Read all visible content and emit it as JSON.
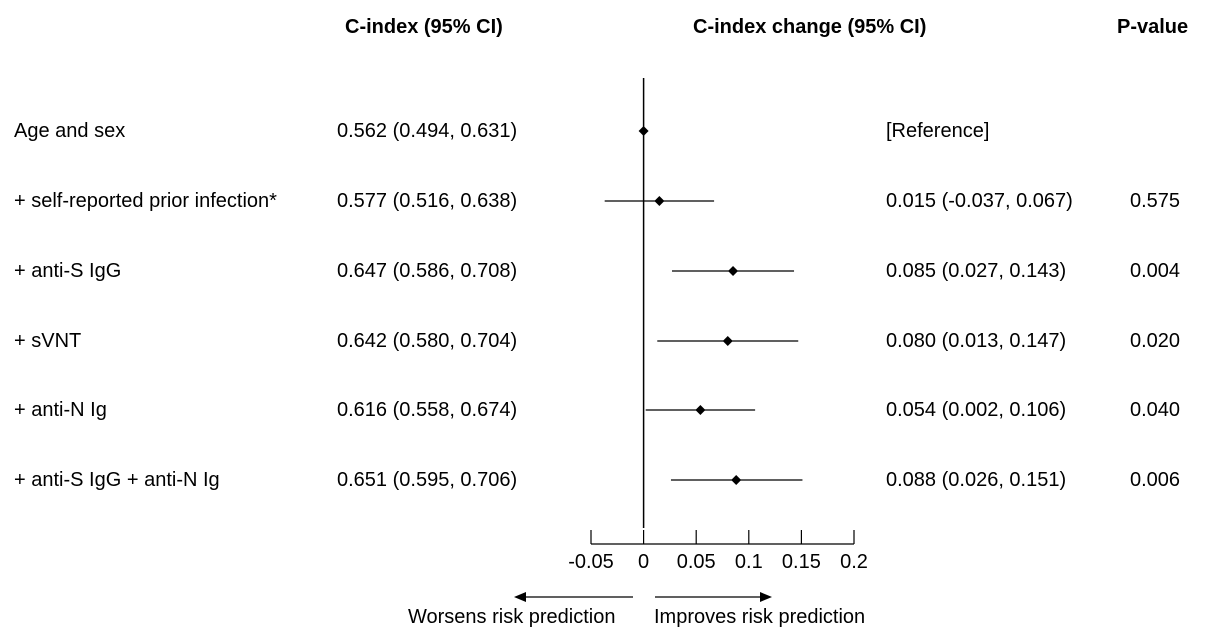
{
  "headers": {
    "cindex": "C-index (95% CI)",
    "change": "C-index change (95% CI)",
    "pvalue": "P-value"
  },
  "rows": [
    {
      "label": "Age and sex",
      "cindex": "0.562 (0.494, 0.631)",
      "change_text": "[Reference]",
      "p": ""
    },
    {
      "label": "+ self-reported prior infection*",
      "cindex": "0.577 (0.516, 0.638)",
      "change_text": "0.015 (-0.037, 0.067)",
      "p": "0.575"
    },
    {
      "label": "+ anti-S IgG",
      "cindex": "0.647 (0.586, 0.708)",
      "change_text": "0.085 (0.027, 0.143)",
      "p": "0.004"
    },
    {
      "label": "+ sVNT",
      "cindex": "0.642 (0.580, 0.704)",
      "change_text": "0.080 (0.013, 0.147)",
      "p": "0.020"
    },
    {
      "label": "+ anti-N Ig",
      "cindex": "0.616 (0.558, 0.674)",
      "change_text": "0.054 (0.002, 0.106)",
      "p": "0.040"
    },
    {
      "label": "+ anti-S IgG + anti-N Ig",
      "cindex": "0.651 (0.595, 0.706)",
      "change_text": "0.088 (0.026, 0.151)",
      "p": "0.006"
    }
  ],
  "chart_data": {
    "type": "forest",
    "categories": [
      "Age and sex",
      "+ self-reported prior infection*",
      "+ anti-S IgG",
      "+ sVNT",
      "+ anti-N Ig",
      "+ anti-S IgG + anti-N Ig"
    ],
    "series": [
      {
        "estimate": [
          0,
          0.015,
          0.085,
          0.08,
          0.054,
          0.088
        ],
        "lower": [
          0,
          -0.037,
          0.027,
          0.013,
          0.002,
          0.026
        ],
        "upper": [
          0,
          0.067,
          0.143,
          0.147,
          0.106,
          0.151
        ]
      }
    ],
    "xlim": [
      -0.05,
      0.2
    ],
    "xticks": [
      -0.05,
      0,
      0.05,
      0.1,
      0.15,
      0.2
    ],
    "xtick_labels": [
      "-0.05",
      "0",
      "0.05",
      "0.1",
      "0.15",
      "0.2"
    ],
    "reference_line": 0,
    "left_label": "Worsens risk prediction",
    "right_label": "Improves risk prediction"
  }
}
